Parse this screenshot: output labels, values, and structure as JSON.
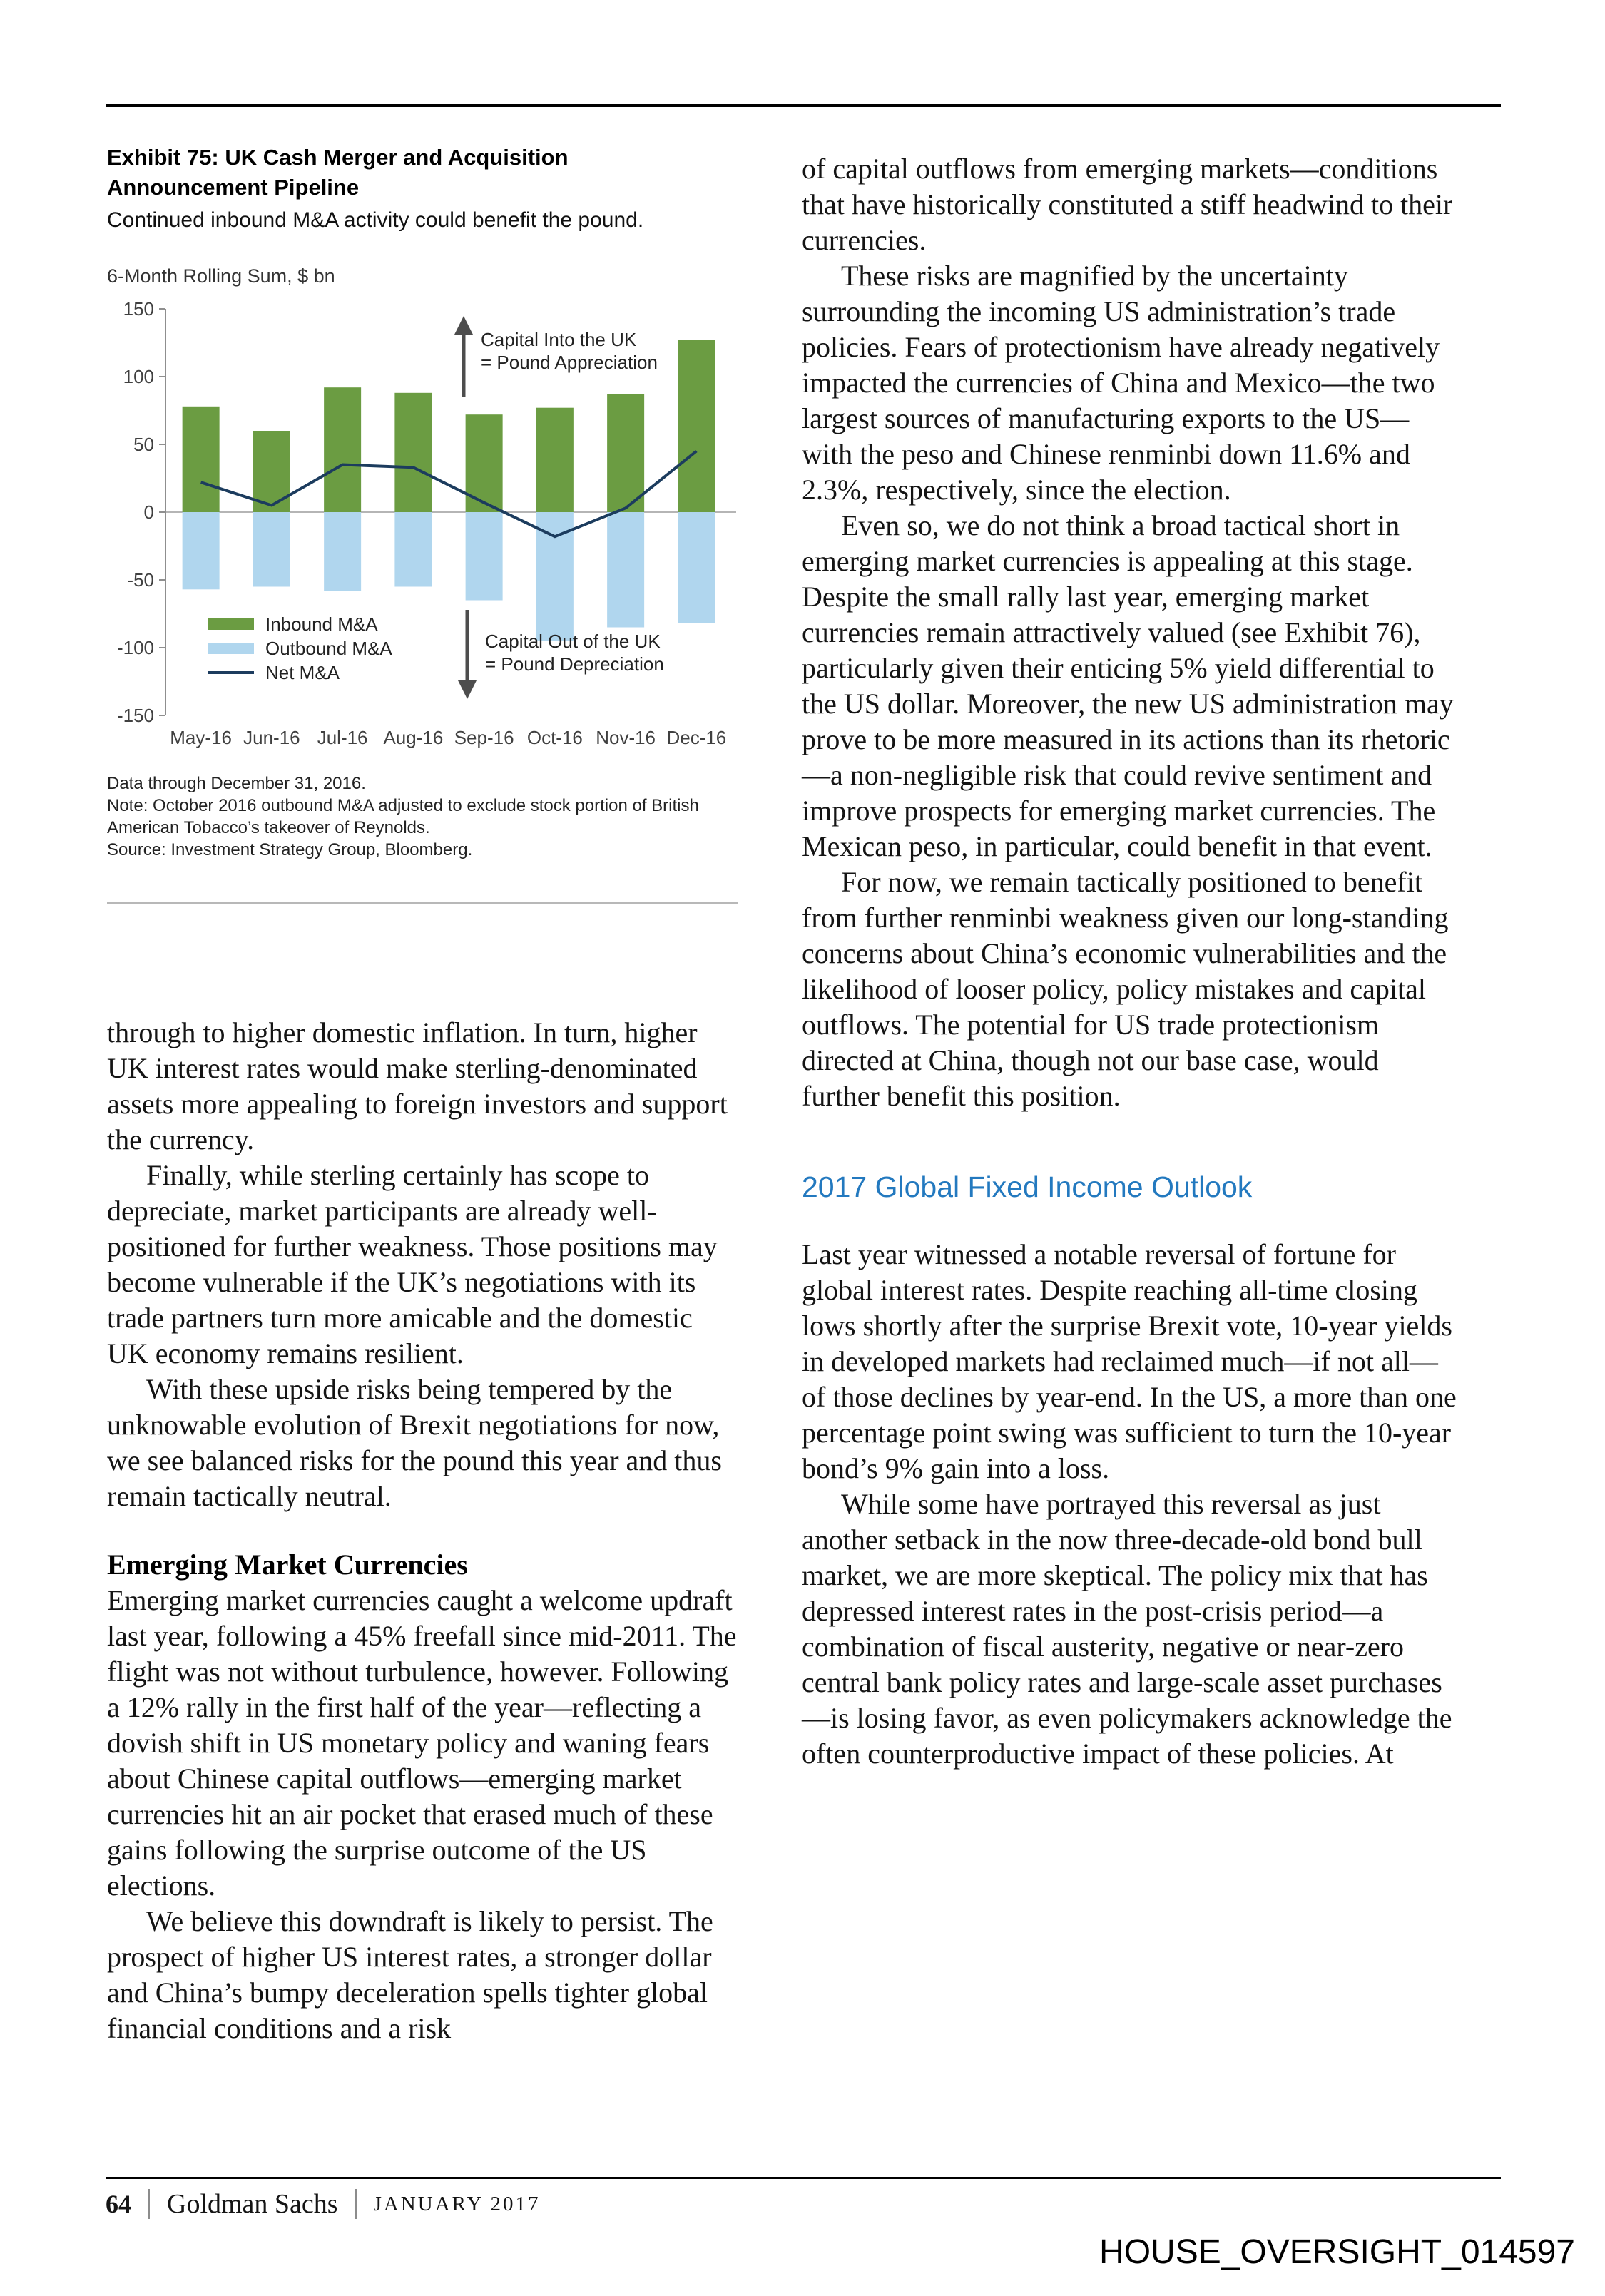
{
  "exhibit": {
    "title_line1": "Exhibit 75: UK Cash Merger and Acquisition",
    "title_line2": "Announcement Pipeline",
    "subtitle": "Continued inbound M&A activity could benefit the pound.",
    "footnotes": [
      "Data through December 31, 2016.",
      "Note: October 2016 outbound M&A adjusted to exclude stock portion of British American Tobacco’s takeover of Reynolds.",
      "Source: Investment Strategy Group, Bloomberg."
    ]
  },
  "chart_data": {
    "type": "bar",
    "unit_label": "6-Month Rolling Sum, $ bn",
    "categories": [
      "May-16",
      "Jun-16",
      "Jul-16",
      "Aug-16",
      "Sep-16",
      "Oct-16",
      "Nov-16",
      "Dec-16"
    ],
    "series": [
      {
        "name": "Inbound M&A",
        "type": "bar",
        "values": [
          78,
          60,
          92,
          88,
          72,
          77,
          87,
          127
        ]
      },
      {
        "name": "Outbound M&A",
        "type": "bar",
        "values": [
          -57,
          -55,
          -58,
          -55,
          -65,
          -95,
          -85,
          -82
        ]
      },
      {
        "name": "Net M&A",
        "type": "line",
        "values": [
          22,
          5,
          35,
          33,
          7,
          -18,
          3,
          45
        ]
      }
    ],
    "ylim": [
      -150,
      150
    ],
    "yticks": [
      150,
      100,
      50,
      0,
      -50,
      -100,
      -150
    ],
    "grid": false,
    "legend_position": "inside-bottom-left",
    "colors": {
      "inbound": "#6b9c42",
      "outbound": "#b0d6ee",
      "net": "#1c3c5e"
    },
    "annotations": [
      {
        "arrow": "up",
        "text_line1": "Capital Into the UK",
        "text_line2": "= Pound Appreciation"
      },
      {
        "arrow": "down",
        "text_line1": "Capital Out of the UK",
        "text_line2": "= Pound Depreciation"
      }
    ]
  },
  "left_column": {
    "paragraphs": [
      "through to higher domestic inflation. In turn, higher UK interest rates would make sterling-denominated assets more appealing to foreign investors and support the currency.",
      "Finally, while sterling certainly has scope to depreciate, market participants are already well-positioned for further weakness. Those positions may become vulnerable if the UK’s negotiations with its trade partners turn more amicable and the domestic UK economy remains resilient.",
      "With these upside risks being tempered by the unknowable evolution of Brexit negotiations for now, we see balanced risks for the pound this year and thus remain tactically neutral."
    ],
    "emerging_heading": "Emerging Market Currencies",
    "emerging_paragraphs": [
      "Emerging market currencies caught a welcome updraft last year, following a 45% freefall since mid-2011. The flight was not without turbulence, however. Following a 12% rally in the first half of the year—reflecting a dovish shift in US monetary policy and waning fears about Chinese capital outflows—emerging market currencies hit an air pocket that erased much of these gains following the surprise outcome of the US elections.",
      "We believe this downdraft is likely to persist. The prospect of higher US interest rates, a stronger dollar and China’s bumpy deceleration spells tighter global financial conditions and a risk"
    ]
  },
  "right_column": {
    "paragraphs": [
      "of capital outflows from emerging markets—conditions that have historically constituted a stiff headwind to their currencies.",
      "These risks are magnified by the uncertainty surrounding the incoming US administration’s trade policies. Fears of protectionism have already negatively impacted the currencies of China and Mexico—the two largest sources of manufacturing exports to the US—with the peso and Chinese renminbi down 11.6% and 2.3%, respectively, since the election.",
      "Even so, we do not think a broad tactical short in emerging market currencies is appealing at this stage. Despite the small rally last year, emerging market currencies remain attractively valued (see Exhibit 76), particularly given their enticing 5% yield differential to the US dollar. Moreover, the new US administration may prove to be more measured in its actions than its rhetoric—a non-negligible risk that could revive sentiment and improve prospects for emerging market currencies. The Mexican peso, in particular, could benefit in that event.",
      "For now, we remain tactically positioned to benefit from further renminbi weakness given our long-standing concerns about China’s economic vulnerabilities and the likelihood of looser policy, policy mistakes and capital outflows. The potential for US trade protectionism directed at China, though not our base case, would further benefit this position."
    ],
    "fixed_income_heading": "2017 Global Fixed Income Outlook",
    "fixed_income_paragraphs": [
      "Last year witnessed a notable reversal of fortune for global interest rates. Despite reaching all-time closing lows shortly after the surprise Brexit vote, 10-year yields in developed markets had reclaimed much—if not all—of those declines by year-end. In the US, a more than one percentage point swing was sufficient to turn the 10-year bond’s 9% gain into a loss.",
      "While some have portrayed this reversal as just another setback in the now three-decade-old bond bull market, we are more skeptical. The policy mix that has depressed interest rates in the post-crisis period—a combination of fiscal austerity, negative or near-zero central bank policy rates and large-scale asset purchases—is losing favor, as even policymakers acknowledge the often counterproductive impact of these policies. At"
    ]
  },
  "footer": {
    "page_number": "64",
    "brand": "Goldman Sachs",
    "date": "JANUARY 2017"
  },
  "watermark": "HOUSE_OVERSIGHT_014597"
}
